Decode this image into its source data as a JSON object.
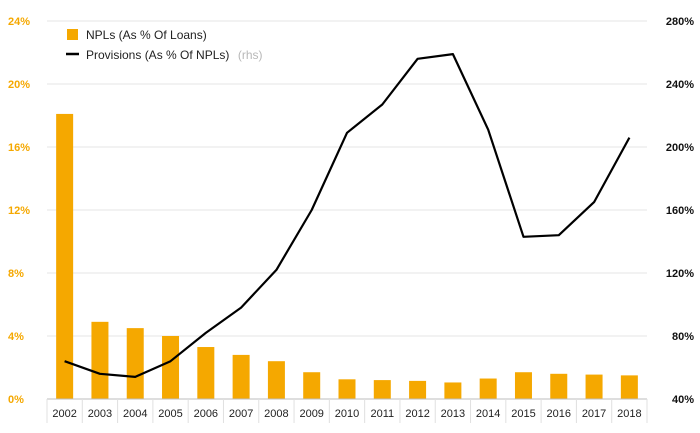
{
  "chart_data": {
    "type": "bar+line",
    "categories": [
      "2002",
      "2003",
      "2004",
      "2005",
      "2006",
      "2007",
      "2008",
      "2009",
      "2010",
      "2011",
      "2012",
      "2013",
      "2014",
      "2015",
      "2016",
      "2017",
      "2018"
    ],
    "series": [
      {
        "name": "NPLs (As % Of Loans)",
        "type": "bar",
        "axis": "left",
        "color": "#f5a800",
        "values": [
          18.1,
          4.9,
          4.5,
          4.0,
          3.3,
          2.8,
          2.4,
          1.7,
          1.25,
          1.2,
          1.15,
          1.05,
          1.3,
          1.7,
          1.6,
          1.55,
          1.5
        ]
      },
      {
        "name": "Provisions (As % Of NPLs)",
        "type": "line",
        "axis": "right",
        "color": "#000000",
        "values": [
          64,
          56,
          54,
          64,
          82,
          98,
          122,
          160,
          209,
          227,
          256,
          259,
          211,
          143,
          144,
          165,
          206
        ]
      }
    ],
    "left_axis": {
      "ticks": [
        "0%",
        "4%",
        "8%",
        "12%",
        "16%",
        "20%",
        "24%"
      ],
      "ylim": [
        0,
        24
      ]
    },
    "right_axis": {
      "ticks": [
        "40%",
        "80%",
        "120%",
        "160%",
        "200%",
        "240%",
        "280%"
      ],
      "ylim": [
        40,
        280
      ]
    },
    "legend": {
      "position": "top-left",
      "items": [
        {
          "label": "NPLs (As % Of Loans)",
          "suffix": ""
        },
        {
          "label": "Provisions (As % Of NPLs)",
          "suffix": "(rhs)"
        }
      ]
    },
    "gridlines": true
  }
}
